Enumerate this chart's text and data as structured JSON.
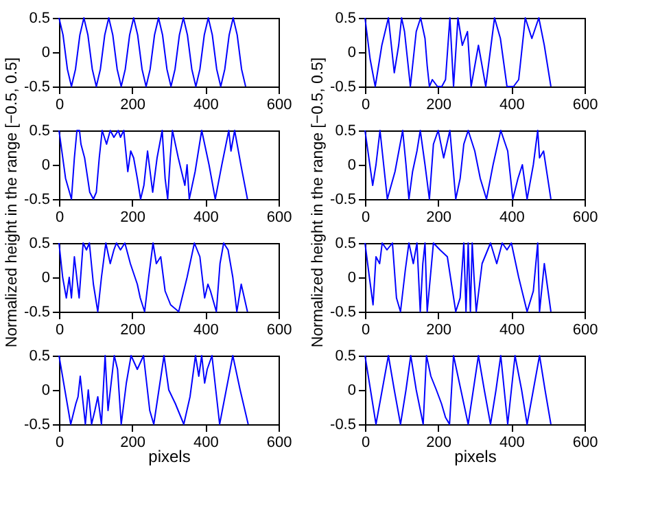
{
  "chart_data": [
    {
      "type": "line",
      "ylabel": "Normalized height in the range [−0.5, 0.5]",
      "xlim": [
        0,
        600
      ],
      "ylim": [
        -0.5,
        0.5
      ],
      "xticks": [
        0,
        200,
        400,
        600
      ],
      "yticks": [
        -0.5,
        0,
        0.5
      ],
      "grid": false,
      "x": [
        0,
        11,
        23,
        34,
        45,
        57,
        68,
        79,
        91,
        102,
        113,
        125,
        136,
        147,
        159,
        170,
        181,
        193,
        204,
        215,
        227,
        238,
        249,
        261,
        272,
        283,
        295,
        306,
        317,
        329,
        340,
        351,
        363,
        374,
        385,
        397,
        408,
        419,
        431,
        442,
        453,
        465,
        476,
        487,
        499,
        510
      ],
      "series": [
        {
          "color": "#0000ff",
          "values": [
            0.5,
            0.25,
            -0.25,
            -0.5,
            -0.25,
            0.25,
            0.5,
            0.25,
            -0.25,
            -0.5,
            -0.25,
            0.25,
            0.5,
            0.25,
            -0.25,
            -0.5,
            -0.25,
            0.25,
            0.5,
            0.25,
            -0.25,
            -0.5,
            -0.25,
            0.25,
            0.5,
            0.25,
            -0.25,
            -0.5,
            -0.25,
            0.25,
            0.5,
            0.25,
            -0.25,
            -0.5,
            -0.25,
            0.25,
            0.5,
            0.25,
            -0.25,
            -0.5,
            -0.25,
            0.25,
            0.5,
            0.25,
            -0.25,
            -0.5
          ]
        }
      ]
    },
    {
      "type": "line",
      "ylabel": "Normalized height in the range [−0.5, 0.5]",
      "xlim": [
        0,
        600
      ],
      "ylim": [
        -0.5,
        0.5
      ],
      "xticks": [
        0,
        200,
        400,
        600
      ],
      "yticks": [
        -0.5,
        0,
        0.5
      ],
      "grid": false,
      "x": [
        0,
        14,
        28,
        46,
        64,
        80,
        92,
        100,
        108,
        124,
        140,
        152,
        164,
        170,
        176,
        184,
        198,
        210,
        220,
        232,
        242,
        254,
        266,
        280,
        290,
        310,
        330,
        354,
        370,
        388,
        406,
        420,
        438,
        456,
        475,
        490,
        508
      ],
      "series": [
        {
          "color": "#0000ff",
          "values": [
            0.5,
            -0.1,
            -0.5,
            0.1,
            0.5,
            -0.3,
            0.1,
            0.5,
            0.3,
            -0.5,
            0.3,
            0.5,
            0.2,
            -0.2,
            -0.5,
            -0.4,
            -0.5,
            -0.5,
            -0.4,
            0.5,
            -0.5,
            0.5,
            0.1,
            0.3,
            -0.5,
            0.1,
            -0.5,
            0.5,
            0.2,
            -0.5,
            -0.5,
            -0.4,
            0.5,
            0.2,
            0.5,
            0.1,
            -0.5
          ]
        }
      ]
    },
    {
      "type": "line",
      "xlim": [
        0,
        600
      ],
      "ylim": [
        -0.5,
        0.5
      ],
      "xticks": [
        0,
        200,
        400,
        600
      ],
      "yticks": [
        -0.5,
        0,
        0.5
      ],
      "grid": false,
      "x": [
        0,
        18,
        34,
        42,
        49,
        56,
        60,
        70,
        84,
        94,
        102,
        110,
        118,
        130,
        140,
        150,
        162,
        168,
        177,
        188,
        196,
        204,
        214,
        223,
        232,
        242,
        256,
        268,
        282,
        290,
        297,
        304,
        310,
        326,
        344,
        350,
        356,
        372,
        390,
        410,
        427,
        445,
        464,
        470,
        480,
        497,
        515
      ],
      "series": [
        {
          "color": "#0000ff",
          "values": [
            0.5,
            -0.2,
            -0.5,
            0.1,
            0.5,
            0.5,
            0.3,
            0.1,
            -0.4,
            -0.5,
            -0.4,
            0.1,
            0.5,
            0.3,
            0.5,
            0.4,
            0.5,
            0.4,
            0.5,
            -0.1,
            0.2,
            0.1,
            -0.2,
            -0.5,
            -0.3,
            0.2,
            -0.4,
            0.1,
            0.5,
            -0.2,
            -0.5,
            0.1,
            0.5,
            0.1,
            -0.3,
            0.0,
            -0.5,
            -0.1,
            0.5,
            0.0,
            -0.5,
            0.0,
            0.5,
            0.2,
            0.5,
            0.0,
            -0.5
          ]
        }
      ]
    },
    {
      "type": "line",
      "xlim": [
        0,
        600
      ],
      "ylim": [
        -0.5,
        0.5
      ],
      "xticks": [
        0,
        200,
        400,
        600
      ],
      "yticks": [
        -0.5,
        0,
        0.5
      ],
      "grid": false,
      "x": [
        0,
        21,
        30,
        41,
        51,
        61,
        82,
        103,
        112,
        120,
        130,
        142,
        151,
        164,
        176,
        187,
        200,
        215,
        232,
        248,
        260,
        270,
        282,
        300,
        315,
        332,
        350,
        371,
        390,
        404,
        418,
        430,
        443,
        460,
        472,
        477,
        488,
        508
      ],
      "series": [
        {
          "color": "#0000ff",
          "values": [
            0.5,
            -0.3,
            0.0,
            0.5,
            0.0,
            -0.5,
            -0.1,
            0.5,
            0.0,
            -0.5,
            -0.1,
            0.2,
            0.5,
            0.0,
            -0.5,
            0.3,
            0.5,
            0.1,
            0.5,
            -0.5,
            -0.2,
            0.3,
            0.5,
            0.2,
            -0.2,
            -0.5,
            0.0,
            0.5,
            0.2,
            -0.5,
            -0.2,
            0.0,
            -0.5,
            0.0,
            0.5,
            0.1,
            0.2,
            -0.5
          ]
        }
      ]
    },
    {
      "type": "line",
      "xlim": [
        0,
        600
      ],
      "ylim": [
        -0.5,
        0.5
      ],
      "xticks": [
        0,
        200,
        400,
        600
      ],
      "yticks": [
        -0.5,
        0,
        0.5
      ],
      "grid": false,
      "x": [
        0,
        10,
        20,
        28,
        34,
        42,
        55,
        66,
        75,
        83,
        94,
        106,
        116,
        128,
        140,
        150,
        157,
        168,
        180,
        195,
        214,
        222,
        234,
        245,
        257,
        266,
        278,
        290,
        305,
        327,
        350,
        370,
        385,
        398,
        407,
        414,
        430,
        440,
        450,
        462,
        475,
        486,
        498,
        515
      ],
      "series": [
        {
          "color": "#0000ff",
          "values": [
            0.5,
            0.0,
            -0.3,
            0.0,
            -0.3,
            0.3,
            -0.3,
            0.5,
            0.4,
            0.5,
            -0.1,
            -0.5,
            0.0,
            0.5,
            0.2,
            0.4,
            0.5,
            0.4,
            0.5,
            0.2,
            -0.1,
            -0.3,
            -0.5,
            0.0,
            0.5,
            0.2,
            0.3,
            -0.2,
            -0.4,
            -0.5,
            0.0,
            0.5,
            0.3,
            -0.3,
            -0.1,
            -0.2,
            -0.5,
            0.2,
            0.5,
            0.4,
            0.0,
            -0.5,
            -0.1,
            -0.5
          ]
        }
      ]
    },
    {
      "type": "line",
      "xlim": [
        0,
        600
      ],
      "ylim": [
        -0.5,
        0.5
      ],
      "xticks": [
        0,
        200,
        400,
        600
      ],
      "yticks": [
        -0.5,
        0,
        0.5
      ],
      "grid": false,
      "x": [
        0,
        12,
        22,
        30,
        40,
        47,
        60,
        75,
        86,
        97,
        110,
        120,
        132,
        142,
        151,
        158,
        164,
        170,
        187,
        205,
        225,
        248,
        260,
        270,
        276,
        282,
        288,
        293,
        298,
        304,
        320,
        343,
        360,
        375,
        388,
        400,
        420,
        443,
        460,
        472,
        477,
        490,
        508
      ],
      "series": [
        {
          "color": "#0000ff",
          "values": [
            0.5,
            0.0,
            -0.4,
            0.3,
            0.2,
            0.5,
            0.4,
            0.5,
            -0.3,
            -0.5,
            0.1,
            0.5,
            0.2,
            0.5,
            -0.5,
            0.2,
            0.5,
            -0.5,
            0.5,
            0.4,
            0.3,
            -0.5,
            -0.3,
            0.5,
            -0.5,
            0.5,
            -0.5,
            0.5,
            0.0,
            -0.5,
            0.2,
            0.5,
            0.2,
            0.5,
            0.4,
            0.5,
            0.0,
            -0.5,
            -0.2,
            0.5,
            -0.5,
            0.2,
            -0.5
          ]
        }
      ]
    },
    {
      "type": "line",
      "xlabel": "pixels",
      "xlim": [
        0,
        600
      ],
      "ylim": [
        -0.5,
        0.5
      ],
      "xticks": [
        0,
        200,
        400,
        600
      ],
      "yticks": [
        -0.5,
        0,
        0.5
      ],
      "grid": false,
      "x": [
        0,
        32,
        46,
        52,
        58,
        72,
        80,
        89,
        98,
        106,
        116,
        126,
        134,
        151,
        160,
        170,
        184,
        197,
        214,
        231,
        248,
        259,
        287,
        300,
        318,
        341,
        358,
        373,
        382,
        390,
        398,
        405,
        418,
        439,
        457,
        475,
        495,
        517
      ],
      "series": [
        {
          "color": "#0000ff",
          "values": [
            0.5,
            -0.5,
            -0.2,
            -0.1,
            0.2,
            -0.5,
            0.0,
            -0.5,
            -0.3,
            -0.1,
            -0.5,
            0.5,
            -0.3,
            0.5,
            0.3,
            -0.5,
            0.1,
            0.5,
            0.3,
            0.5,
            -0.3,
            -0.5,
            0.5,
            0.0,
            -0.2,
            -0.5,
            -0.1,
            0.5,
            0.2,
            0.5,
            0.1,
            0.3,
            0.5,
            -0.5,
            0.0,
            0.5,
            0.0,
            -0.5
          ]
        }
      ]
    },
    {
      "type": "line",
      "xlabel": "pixels",
      "xlim": [
        0,
        600
      ],
      "ylim": [
        -0.5,
        0.5
      ],
      "xticks": [
        0,
        200,
        400,
        600
      ],
      "yticks": [
        -0.5,
        0,
        0.5
      ],
      "grid": false,
      "x": [
        0,
        30,
        64,
        80,
        97,
        112,
        125,
        140,
        159,
        168,
        180,
        195,
        209,
        220,
        231,
        242,
        262,
        282,
        296,
        310,
        326,
        343,
        358,
        371,
        390,
        410,
        428,
        443,
        460,
        477,
        492,
        508
      ],
      "series": [
        {
          "color": "#0000ff",
          "values": [
            0.5,
            -0.5,
            0.5,
            0.0,
            -0.5,
            0.0,
            0.5,
            0.0,
            -0.5,
            0.5,
            0.2,
            0.0,
            -0.2,
            -0.4,
            -0.5,
            0.5,
            0.0,
            -0.5,
            0.0,
            0.5,
            0.0,
            -0.5,
            0.0,
            0.5,
            -0.5,
            0.5,
            0.0,
            -0.5,
            0.0,
            0.5,
            0.0,
            -0.5
          ]
        }
      ]
    }
  ]
}
